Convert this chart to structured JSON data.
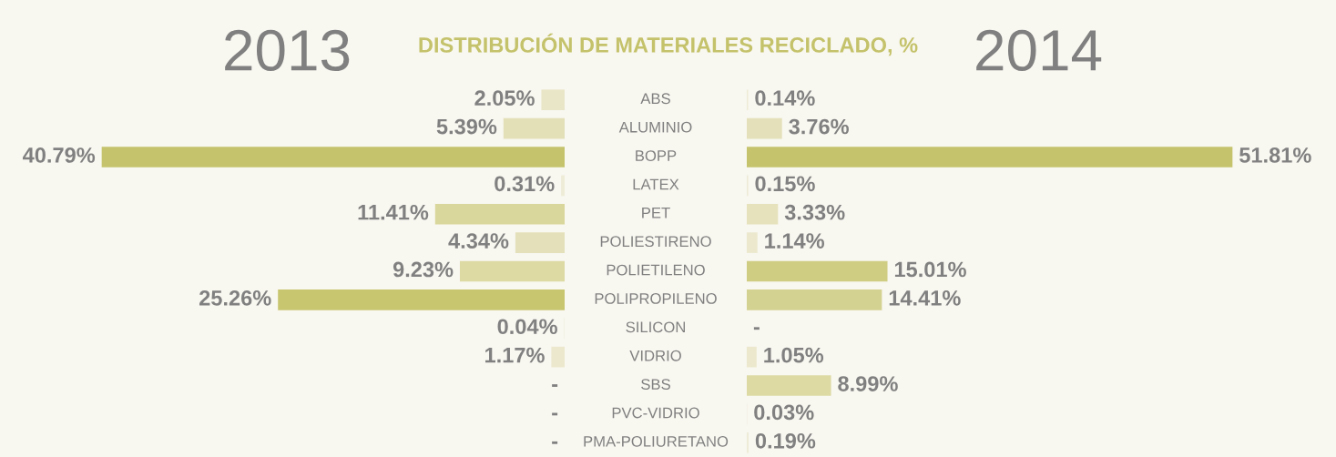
{
  "chart_data": [
    {
      "type": "bar",
      "orientation": "horizontal",
      "title": "2013",
      "annotations": [
        "DISTRIBUCIÓN DE MATERIALES RECICLADO, %"
      ],
      "categories": [
        "ABS",
        "ALUMINIO",
        "BOPP",
        "LATEX",
        "PET",
        "POLIESTIRENO",
        "POLIETILENO",
        "POLIPROPILENO",
        "SILICON",
        "VIDRIO",
        "SBS",
        "PVC-VIDRIO",
        "PMA-POLIURETANO"
      ],
      "values": [
        2.05,
        5.39,
        40.79,
        0.31,
        11.41,
        4.34,
        9.23,
        25.26,
        0.04,
        1.17,
        null,
        null,
        null
      ],
      "value_labels": [
        "2.05%",
        "5.39%",
        "40.79%",
        "0.31%",
        "11.41%",
        "4.34%",
        "9.23%",
        "25.26%",
        "0.04%",
        "1.17%",
        "-",
        "-",
        "-"
      ],
      "colors": [
        "#e9e6c8",
        "#e3e0b8",
        "#c5c46d",
        "#eeecd6",
        "#dad79c",
        "#e4e1ba",
        "#dddaa4",
        "#c8c66f",
        "#efedd9",
        "#ebe8cd",
        "#efedd9",
        "#efedd9",
        "#efedd9"
      ],
      "tick_labels": false
    },
    {
      "type": "bar",
      "orientation": "horizontal",
      "title": "2014",
      "categories": [
        null,
        null,
        null,
        null,
        null,
        null,
        null,
        null,
        null,
        null,
        null,
        null,
        null
      ],
      "values": [
        0.14,
        3.76,
        51.81,
        0.15,
        3.33,
        1.14,
        15.01,
        14.41,
        null,
        1.05,
        8.99,
        0.03,
        0.19
      ],
      "value_labels": [
        "0.14%",
        "3.76%",
        "51.81%",
        "0.15%",
        "3.33%",
        "1.14%",
        "15.01%",
        "14.41%",
        "-",
        "1.05%",
        "8.99%",
        "0.03%",
        "0.19%"
      ],
      "colors": [
        "#eeecd6",
        "#e4e1ba",
        "#c5c46d",
        "#eeecd6",
        "#e5e2bc",
        "#ebe8cd",
        "#cfcd82",
        "#d4d290",
        "#eeecd6",
        "#ebe8cd",
        "#dddaa4",
        "#eeecd6",
        "#eeecd6"
      ],
      "tick_labels": false
    }
  ]
}
